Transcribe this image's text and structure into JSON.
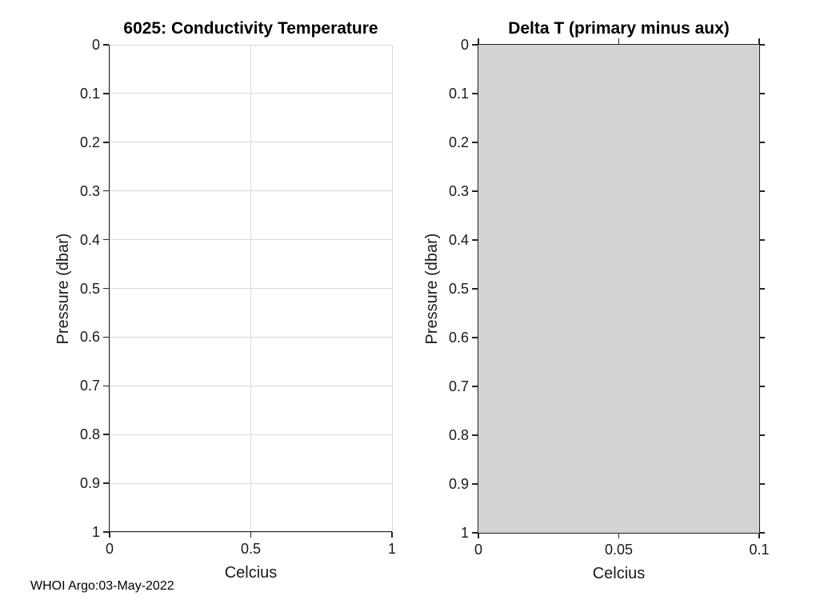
{
  "figure": {
    "footer_text": "WHOI Argo:03-May-2022",
    "background": "#ffffff"
  },
  "styles": {
    "axis_color": "#242424",
    "grid_color": "#d9d9d9",
    "tick_text_color": "#1a1a1a",
    "title_color": "#000000",
    "patch_fill": "#d3d3d3",
    "patch_edge": "#1f1f1f"
  },
  "chart_data": [
    {
      "type": "line",
      "title": "6025: Conductivity Temperature",
      "xlabel": "Celcius",
      "ylabel": "Pressure (dbar)",
      "xlim": [
        0,
        1
      ],
      "ylim": [
        0,
        1
      ],
      "y_axis_reversed": true,
      "grid": true,
      "box": false,
      "legend": null,
      "series": [],
      "xticks": [
        {
          "value": 0,
          "label": "0"
        },
        {
          "value": 0.5,
          "label": "0.5"
        },
        {
          "value": 1,
          "label": "1"
        }
      ],
      "yticks": [
        {
          "value": 0,
          "label": "0"
        },
        {
          "value": 0.1,
          "label": "0.1"
        },
        {
          "value": 0.2,
          "label": "0.2"
        },
        {
          "value": 0.3,
          "label": "0.3"
        },
        {
          "value": 0.4,
          "label": "0.4"
        },
        {
          "value": 0.5,
          "label": "0.5"
        },
        {
          "value": 0.6,
          "label": "0.6"
        },
        {
          "value": 0.7,
          "label": "0.7"
        },
        {
          "value": 0.8,
          "label": "0.8"
        },
        {
          "value": 0.9,
          "label": "0.9"
        },
        {
          "value": 1,
          "label": "1"
        }
      ]
    },
    {
      "type": "area",
      "title": "Delta T (primary minus aux)",
      "xlabel": "Celcius",
      "ylabel": "Pressure (dbar)",
      "xlim": [
        0,
        0.1
      ],
      "ylim": [
        0,
        1
      ],
      "y_axis_reversed": true,
      "grid": false,
      "box": true,
      "legend": null,
      "shaded_region": {
        "x": [
          0,
          0.1
        ],
        "y": [
          0,
          1
        ]
      },
      "series": [],
      "xticks": [
        {
          "value": 0,
          "label": "0"
        },
        {
          "value": 0.05,
          "label": "0.05"
        },
        {
          "value": 0.1,
          "label": "0.1"
        }
      ],
      "yticks": [
        {
          "value": 0,
          "label": "0"
        },
        {
          "value": 0.1,
          "label": "0.1"
        },
        {
          "value": 0.2,
          "label": "0.2"
        },
        {
          "value": 0.3,
          "label": "0.3"
        },
        {
          "value": 0.4,
          "label": "0.4"
        },
        {
          "value": 0.5,
          "label": "0.5"
        },
        {
          "value": 0.6,
          "label": "0.6"
        },
        {
          "value": 0.7,
          "label": "0.7"
        },
        {
          "value": 0.8,
          "label": "0.8"
        },
        {
          "value": 0.9,
          "label": "0.9"
        },
        {
          "value": 1,
          "label": "1"
        }
      ]
    }
  ]
}
